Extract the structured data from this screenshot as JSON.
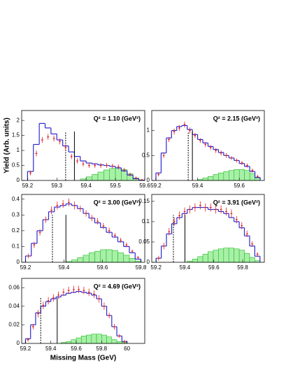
{
  "chart_data": [
    {
      "type": "histogram",
      "title": "Q² = 1.10 (GeV²)",
      "ylabel": "Yield (Arb. units)",
      "xlim": [
        59.18,
        59.6
      ],
      "ylim": [
        0,
        2.33
      ],
      "xticks": [
        59.2,
        59.3,
        59.4,
        59.5,
        59.6
      ],
      "yticks": [
        0,
        0.5,
        1,
        1.5,
        2
      ],
      "bins": [
        59.2,
        59.22,
        59.24,
        59.26,
        59.28,
        59.3,
        59.32,
        59.34,
        59.36,
        59.38,
        59.4,
        59.42,
        59.44,
        59.46,
        59.48,
        59.5,
        59.52,
        59.54,
        59.56,
        59.58,
        59.6
      ],
      "series": [
        {
          "color": "#2a2ad0",
          "values": [
            0.3,
            1.2,
            1.9,
            1.75,
            1.55,
            1.35,
            1.15,
            0.95,
            0.8,
            0.65,
            0.58,
            0.55,
            0.52,
            0.5,
            0.47,
            0.42,
            0.32,
            0.18,
            0.06,
            0.01
          ]
        },
        {
          "color": "#22bb22",
          "fill": "#a8f0a8",
          "values": [
            0,
            0,
            0,
            0,
            0,
            0,
            0,
            0,
            0,
            0.05,
            0.12,
            0.2,
            0.28,
            0.35,
            0.4,
            0.42,
            0.36,
            0.22,
            0.08,
            0.01
          ]
        }
      ],
      "points": {
        "color": "#e02020",
        "x": [
          59.21,
          59.23,
          59.25,
          59.27,
          59.29,
          59.31,
          59.33,
          59.35,
          59.37,
          59.39,
          59.41,
          59.43,
          59.45,
          59.47,
          59.49,
          59.51,
          59.53,
          59.55,
          59.57,
          59.59
        ],
        "values": [
          0.25,
          0.9,
          1.35,
          1.45,
          1.4,
          1.3,
          1.1,
          0.8,
          0.65,
          0.55,
          0.5,
          0.5,
          0.5,
          0.5,
          0.48,
          0.45,
          0.35,
          0.2,
          0.08,
          0.02
        ],
        "errors": [
          0.08,
          0.1,
          0.1,
          0.1,
          0.1,
          0.1,
          0.1,
          0.09,
          0.09,
          0.08,
          0.08,
          0.08,
          0.08,
          0.08,
          0.08,
          0.08,
          0.07,
          0.06,
          0.05,
          0.03
        ]
      },
      "vlines": [
        {
          "x": 59.33,
          "style": "dashed"
        },
        {
          "x": 59.36,
          "style": "solid"
        }
      ]
    },
    {
      "type": "histogram",
      "title": "Q² = 2.15 (GeV²)",
      "xlim": [
        59.18,
        59.72
      ],
      "ylim": [
        0,
        1.4
      ],
      "xticks": [
        59.2,
        59.4,
        59.6
      ],
      "yticks": [
        0,
        0.5,
        1
      ],
      "bins": [
        59.2,
        59.225,
        59.25,
        59.275,
        59.3,
        59.325,
        59.35,
        59.375,
        59.4,
        59.425,
        59.45,
        59.475,
        59.5,
        59.525,
        59.55,
        59.575,
        59.6,
        59.625,
        59.65,
        59.675,
        59.7
      ],
      "series": [
        {
          "color": "#2a2ad0",
          "values": [
            0.15,
            0.55,
            0.85,
            1.0,
            1.08,
            1.1,
            1.02,
            0.92,
            0.82,
            0.75,
            0.68,
            0.62,
            0.56,
            0.5,
            0.45,
            0.4,
            0.34,
            0.28,
            0.18,
            0.06
          ]
        },
        {
          "color": "#22bb22",
          "fill": "#a8f0a8",
          "values": [
            0,
            0,
            0,
            0,
            0,
            0,
            0,
            0,
            0.02,
            0.05,
            0.08,
            0.12,
            0.15,
            0.18,
            0.2,
            0.22,
            0.22,
            0.2,
            0.14,
            0.05
          ]
        }
      ],
      "points": {
        "color": "#e02020",
        "x": [
          59.2125,
          59.2375,
          59.2625,
          59.2875,
          59.3125,
          59.3375,
          59.3625,
          59.3875,
          59.4125,
          59.4375,
          59.4625,
          59.4875,
          59.5125,
          59.5375,
          59.5625,
          59.5875,
          59.6125,
          59.6375,
          59.6625,
          59.6875
        ],
        "values": [
          0.12,
          0.5,
          0.82,
          0.98,
          1.05,
          1.12,
          1.0,
          0.9,
          0.8,
          0.72,
          0.66,
          0.6,
          0.55,
          0.5,
          0.45,
          0.4,
          0.35,
          0.3,
          0.2,
          0.08
        ],
        "errors": [
          0.04,
          0.05,
          0.05,
          0.06,
          0.06,
          0.06,
          0.06,
          0.05,
          0.05,
          0.05,
          0.05,
          0.05,
          0.05,
          0.05,
          0.04,
          0.04,
          0.04,
          0.04,
          0.04,
          0.03
        ]
      },
      "vlines": [
        {
          "x": 59.355,
          "style": "dashed"
        },
        {
          "x": 59.375,
          "style": "solid"
        }
      ]
    },
    {
      "type": "histogram",
      "title": "Q² = 3.00 (GeV²)",
      "xlim": [
        59.18,
        59.82
      ],
      "ylim": [
        0,
        0.43
      ],
      "xticks": [
        59.2,
        59.4,
        59.6,
        59.8
      ],
      "yticks": [
        0,
        0.1,
        0.2,
        0.3,
        0.4
      ],
      "bins": [
        59.2,
        59.23,
        59.26,
        59.29,
        59.32,
        59.35,
        59.38,
        59.41,
        59.44,
        59.47,
        59.5,
        59.53,
        59.56,
        59.59,
        59.62,
        59.65,
        59.68,
        59.71,
        59.74,
        59.77,
        59.8
      ],
      "series": [
        {
          "color": "#2a2ad0",
          "values": [
            0.04,
            0.12,
            0.2,
            0.27,
            0.32,
            0.35,
            0.36,
            0.37,
            0.36,
            0.34,
            0.31,
            0.28,
            0.25,
            0.22,
            0.19,
            0.16,
            0.13,
            0.1,
            0.06,
            0.02
          ]
        },
        {
          "color": "#22bb22",
          "fill": "#a8f0a8",
          "values": [
            0,
            0,
            0,
            0,
            0,
            0,
            0,
            0.005,
            0.015,
            0.03,
            0.045,
            0.06,
            0.07,
            0.08,
            0.08,
            0.075,
            0.06,
            0.045,
            0.025,
            0.008
          ]
        }
      ],
      "points": {
        "color": "#e02020",
        "x": [
          59.215,
          59.245,
          59.275,
          59.305,
          59.335,
          59.365,
          59.395,
          59.425,
          59.455,
          59.485,
          59.515,
          59.545,
          59.575,
          59.605,
          59.635,
          59.665,
          59.695,
          59.725,
          59.755,
          59.785
        ],
        "values": [
          0.04,
          0.11,
          0.19,
          0.27,
          0.33,
          0.36,
          0.37,
          0.38,
          0.36,
          0.34,
          0.31,
          0.28,
          0.26,
          0.23,
          0.2,
          0.17,
          0.14,
          0.11,
          0.07,
          0.03
        ],
        "errors": [
          0.015,
          0.02,
          0.02,
          0.02,
          0.025,
          0.025,
          0.025,
          0.025,
          0.025,
          0.02,
          0.02,
          0.02,
          0.02,
          0.02,
          0.02,
          0.015,
          0.015,
          0.015,
          0.01,
          0.01
        ]
      },
      "vlines": [
        {
          "x": 59.34,
          "style": "dashed"
        },
        {
          "x": 59.41,
          "style": "solid"
        }
      ]
    },
    {
      "type": "histogram",
      "title": "Q² = 3.91 (GeV²)",
      "xlim": [
        59.17,
        59.95
      ],
      "ylim": [
        0,
        0.167
      ],
      "xticks": [
        59.2,
        59.4,
        59.6,
        59.8
      ],
      "yticks": [
        0,
        0.05,
        0.1,
        0.15
      ],
      "bins": [
        59.2,
        59.236,
        59.272,
        59.308,
        59.344,
        59.38,
        59.416,
        59.452,
        59.488,
        59.524,
        59.56,
        59.596,
        59.632,
        59.668,
        59.704,
        59.74,
        59.776,
        59.812,
        59.848,
        59.884,
        59.92
      ],
      "series": [
        {
          "color": "#2a2ad0",
          "values": [
            0.01,
            0.04,
            0.07,
            0.095,
            0.11,
            0.12,
            0.13,
            0.135,
            0.135,
            0.135,
            0.13,
            0.13,
            0.125,
            0.12,
            0.11,
            0.1,
            0.085,
            0.065,
            0.04,
            0.015
          ]
        },
        {
          "color": "#22bb22",
          "fill": "#a8f0a8",
          "values": [
            0,
            0,
            0,
            0,
            0,
            0,
            0.003,
            0.008,
            0.014,
            0.02,
            0.026,
            0.03,
            0.033,
            0.035,
            0.035,
            0.033,
            0.03,
            0.022,
            0.012,
            0.004
          ]
        }
      ],
      "points": {
        "color": "#e02020",
        "x": [
          59.218,
          59.254,
          59.29,
          59.326,
          59.362,
          59.398,
          59.434,
          59.47,
          59.506,
          59.542,
          59.578,
          59.614,
          59.65,
          59.686,
          59.722,
          59.758,
          59.794,
          59.83,
          59.866,
          59.902
        ],
        "values": [
          0.01,
          0.04,
          0.075,
          0.1,
          0.115,
          0.125,
          0.13,
          0.135,
          0.14,
          0.135,
          0.135,
          0.13,
          0.13,
          0.125,
          0.12,
          0.105,
          0.09,
          0.07,
          0.045,
          0.02
        ],
        "errors": [
          0.006,
          0.008,
          0.009,
          0.01,
          0.01,
          0.01,
          0.01,
          0.01,
          0.01,
          0.01,
          0.01,
          0.01,
          0.01,
          0.01,
          0.01,
          0.009,
          0.009,
          0.008,
          0.007,
          0.005
        ]
      },
      "vlines": [
        {
          "x": 59.32,
          "style": "dashed"
        },
        {
          "x": 59.4,
          "style": "solid"
        }
      ]
    },
    {
      "type": "histogram",
      "title": "Q² = 4.69 (GeV²)",
      "xlabel": "Missing Mass (GeV)",
      "xlim": [
        59.17,
        60.14
      ],
      "ylim": [
        0,
        0.07
      ],
      "xticks": [
        59.2,
        59.4,
        59.6,
        59.8,
        60
      ],
      "yticks": [
        0,
        0.02,
        0.04,
        0.06
      ],
      "bins": [
        59.2,
        59.24,
        59.28,
        59.32,
        59.36,
        59.4,
        59.44,
        59.48,
        59.52,
        59.56,
        59.6,
        59.64,
        59.68,
        59.72,
        59.76,
        59.8,
        59.84,
        59.88,
        59.92,
        59.96,
        60.0
      ],
      "series": [
        {
          "color": "#2a2ad0",
          "values": [
            0.005,
            0.02,
            0.033,
            0.04,
            0.045,
            0.048,
            0.05,
            0.052,
            0.054,
            0.055,
            0.056,
            0.055,
            0.054,
            0.052,
            0.048,
            0.04,
            0.03,
            0.018,
            0.008,
            0.002
          ]
        },
        {
          "color": "#22bb22",
          "fill": "#a8f0a8",
          "values": [
            0,
            0,
            0,
            0,
            0,
            0,
            0,
            0.001,
            0.002,
            0.004,
            0.006,
            0.008,
            0.009,
            0.01,
            0.01,
            0.009,
            0.007,
            0.004,
            0.002,
            0.001
          ]
        }
      ],
      "points": {
        "color": "#e02020",
        "x": [
          59.22,
          59.26,
          59.3,
          59.34,
          59.38,
          59.42,
          59.46,
          59.5,
          59.54,
          59.58,
          59.62,
          59.66,
          59.7,
          59.74,
          59.78,
          59.82,
          59.86,
          59.9,
          59.94,
          59.98
        ],
        "values": [
          0.004,
          0.018,
          0.032,
          0.041,
          0.046,
          0.049,
          0.052,
          0.055,
          0.057,
          0.058,
          0.058,
          0.057,
          0.055,
          0.053,
          0.048,
          0.04,
          0.03,
          0.018,
          0.008,
          0.002
        ],
        "errors": [
          0.002,
          0.003,
          0.004,
          0.004,
          0.004,
          0.004,
          0.004,
          0.004,
          0.004,
          0.004,
          0.004,
          0.004,
          0.004,
          0.004,
          0.004,
          0.004,
          0.003,
          0.003,
          0.002,
          0.002
        ]
      },
      "vlines": [
        {
          "x": 59.32,
          "style": "dashed"
        },
        {
          "x": 59.45,
          "style": "solid"
        }
      ]
    }
  ]
}
